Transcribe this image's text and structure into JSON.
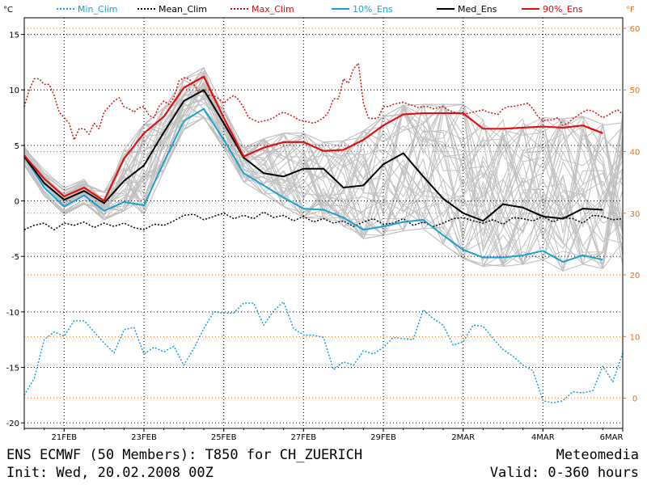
{
  "footer": {
    "line1": "ENS ECMWF (50 Members): T850 for CH_ZUERICH",
    "line2": "Init: Wed, 20.02.2008 00Z",
    "brand": "Meteomedia",
    "valid": "Valid: 0-360 hours"
  },
  "colors": {
    "min_clim": "#1a9fd0",
    "mean_clim": "#000000",
    "max_clim": "#d01010",
    "ens10": "#1a9fd0",
    "med": "#000000",
    "ens90": "#e01010",
    "members": "#c0c0c0",
    "fgrid": "#e07020"
  },
  "chart_data": {
    "type": "line",
    "ylabel_left": "°C",
    "ylabel_right": "°F",
    "xlim": [
      0,
      360
    ],
    "ylim": [
      -20.5,
      16.5
    ],
    "x_ticks": [
      {
        "x": 24,
        "label": "21FEB"
      },
      {
        "x": 72,
        "label": "23FEB"
      },
      {
        "x": 120,
        "label": "25FEB"
      },
      {
        "x": 168,
        "label": "27FEB"
      },
      {
        "x": 216,
        "label": "29FEB"
      },
      {
        "x": 264,
        "label": "2MAR"
      },
      {
        "x": 312,
        "label": "4MAR"
      },
      {
        "x": 360,
        "label": "6MAR"
      }
    ],
    "y_ticks_c": [
      {
        "v": 15,
        "label": "15"
      },
      {
        "v": 10,
        "label": "10"
      },
      {
        "v": 5,
        "label": "5"
      },
      {
        "v": 0,
        "label": "0"
      },
      {
        "v": -5,
        "label": "-5"
      },
      {
        "v": -10,
        "label": "-10"
      },
      {
        "v": -15,
        "label": "-15"
      },
      {
        "v": -20,
        "label": "-20"
      }
    ],
    "y_ticks_f": [
      {
        "v": 60,
        "label": "60"
      },
      {
        "v": 50,
        "label": "50"
      },
      {
        "v": 40,
        "label": "40"
      },
      {
        "v": 30,
        "label": "30"
      },
      {
        "v": 20,
        "label": "20"
      },
      {
        "v": 10,
        "label": "10"
      },
      {
        "v": 0,
        "label": "0"
      }
    ],
    "legend": [
      {
        "name": "Min_Clim",
        "key": "min_clim",
        "dash": true
      },
      {
        "name": "Mean_Clim",
        "key": "mean_clim",
        "dash": true
      },
      {
        "name": "Max_Clim",
        "key": "max_clim",
        "dash": true
      },
      {
        "name": "10%_Ens",
        "key": "ens10",
        "dash": false
      },
      {
        "name": "Med_Ens",
        "key": "med",
        "dash": false
      },
      {
        "name": "90%_Ens",
        "key": "ens90",
        "dash": false
      }
    ],
    "series": [
      {
        "name": "Max_Clim",
        "key": "max_clim",
        "dash": true,
        "width": 1.5,
        "x": [
          0,
          3,
          6,
          9,
          12,
          15,
          18,
          21,
          24,
          27,
          30,
          33,
          36,
          39,
          42,
          45,
          48,
          51,
          54,
          57,
          60,
          63,
          66,
          69,
          72,
          75,
          78,
          81,
          84,
          87,
          90,
          93,
          96,
          99,
          102,
          105,
          108,
          111,
          114,
          117,
          120,
          123,
          126,
          129,
          132,
          135,
          138,
          141,
          144,
          147,
          150,
          153,
          156,
          159,
          162,
          165,
          168,
          171,
          174,
          177,
          180,
          183,
          186,
          189,
          192,
          195,
          198,
          201,
          204,
          207,
          210,
          213,
          216,
          219,
          222,
          225,
          228,
          231,
          234,
          237,
          240,
          243,
          246,
          249,
          252,
          255,
          258,
          261,
          264,
          267,
          270,
          273,
          276,
          279,
          282,
          285,
          288,
          291,
          294,
          297,
          300,
          303,
          306,
          309,
          312,
          315,
          318,
          321,
          324,
          327,
          330,
          333,
          336,
          339,
          342,
          345,
          348,
          351,
          354,
          357,
          360
        ],
        "y": [
          8.5,
          10,
          11,
          11,
          10.5,
          10.5,
          9.5,
          8,
          7.5,
          7,
          5.5,
          6.5,
          6.5,
          6,
          7,
          6.5,
          8,
          8.5,
          9,
          9.3,
          8.5,
          8.3,
          8,
          8.4,
          8.5,
          7.7,
          7.5,
          8.5,
          9,
          8.7,
          9.3,
          10.8,
          11.1,
          11,
          10.5,
          9.8,
          9.8,
          9.5,
          9.5,
          9.2,
          8.8,
          9.2,
          9.5,
          9.1,
          8.4,
          7.5,
          7.3,
          7.1,
          7.2,
          7.3,
          7.5,
          7.8,
          8,
          7.8,
          7.6,
          7.3,
          7.2,
          7.1,
          7.0,
          7.2,
          7.5,
          8.0,
          9.2,
          9.2,
          11.0,
          10.6,
          11.9,
          12.4,
          8.8,
          7.5,
          7.4,
          7.5,
          8.5,
          8.5,
          8.7,
          8.8,
          8.9,
          8.7,
          8.6,
          8.4,
          8.5,
          8.5,
          8.3,
          8.4,
          8.5,
          8.2,
          8.0,
          7.9,
          7.8,
          7.9,
          8.0,
          8.1,
          8.2,
          8.0,
          7.9,
          7.8,
          8.3,
          8.5,
          8.5,
          8.6,
          8.7,
          8.8,
          8.3,
          7.6,
          7.2,
          7.3,
          7.3,
          7.5,
          6.8,
          7.0,
          7.4,
          7.7,
          8.0,
          8.2,
          8.1,
          7.8,
          7.5,
          7.7,
          8.0,
          8.2,
          7.8
        ]
      },
      {
        "name": "Mean_Clim",
        "key": "mean_clim",
        "dash": true,
        "width": 1.5,
        "x": [
          0,
          6,
          12,
          18,
          24,
          30,
          36,
          42,
          48,
          54,
          60,
          66,
          72,
          78,
          84,
          90,
          96,
          102,
          108,
          114,
          120,
          126,
          132,
          138,
          144,
          150,
          156,
          162,
          168,
          174,
          180,
          186,
          192,
          198,
          204,
          210,
          216,
          222,
          228,
          234,
          240,
          246,
          252,
          258,
          264,
          270,
          276,
          282,
          288,
          294,
          300,
          306,
          312,
          318,
          324,
          330,
          336,
          342,
          348,
          354,
          360
        ],
        "y": [
          -2.6,
          -2.2,
          -2.0,
          -2.6,
          -2.0,
          -2.2,
          -1.9,
          -2.4,
          -2.0,
          -2.3,
          -2.0,
          -2.4,
          -2.6,
          -2.1,
          -2.2,
          -1.8,
          -1.3,
          -1.2,
          -1.7,
          -1.4,
          -1.1,
          -1.6,
          -1.3,
          -1.6,
          -1.0,
          -1.5,
          -1.3,
          -1.8,
          -1.4,
          -1.9,
          -1.6,
          -2.0,
          -1.8,
          -2.3,
          -1.9,
          -1.6,
          -2.1,
          -2.0,
          -1.6,
          -2.2,
          -1.9,
          -2.3,
          -2.0,
          -1.6,
          -1.5,
          -1.8,
          -2.0,
          -1.7,
          -2.1,
          -1.5,
          -1.6,
          -1.8,
          -1.4,
          -1.9,
          -1.5,
          -1.6,
          -2.0,
          -1.3,
          -1.4,
          -1.7,
          -1.6
        ]
      },
      {
        "name": "Min_Clim",
        "key": "min_clim",
        "dash": true,
        "width": 1.5,
        "x": [
          0,
          6,
          12,
          18,
          24,
          30,
          36,
          42,
          48,
          54,
          60,
          66,
          72,
          78,
          84,
          90,
          96,
          102,
          108,
          114,
          120,
          126,
          132,
          138,
          144,
          150,
          156,
          162,
          168,
          174,
          180,
          186,
          192,
          198,
          204,
          210,
          216,
          222,
          228,
          234,
          240,
          246,
          252,
          258,
          264,
          270,
          276,
          282,
          288,
          294,
          300,
          306,
          312,
          318,
          324,
          330,
          336,
          342,
          348,
          354,
          360
        ],
        "y": [
          -17.5,
          -16,
          -12.5,
          -11.8,
          -12.2,
          -10.8,
          -10.8,
          -11.8,
          -12.8,
          -13.7,
          -11.6,
          -11.4,
          -13.8,
          -13.2,
          -13.6,
          -13.1,
          -14.8,
          -13.3,
          -11.5,
          -10.0,
          -10.1,
          -10.1,
          -9.2,
          -9.2,
          -11.2,
          -9.9,
          -9.1,
          -11.5,
          -12.1,
          -12.1,
          -12.3,
          -15.2,
          -14.5,
          -14.8,
          -13.5,
          -13.8,
          -13.2,
          -12.3,
          -12.4,
          -12.5,
          -9.8,
          -10.6,
          -11.2,
          -13.0,
          -12.7,
          -11.2,
          -11.3,
          -12.4,
          -13.4,
          -14.0,
          -14.8,
          -15.3,
          -18.0,
          -18.2,
          -18.0,
          -17.2,
          -17.3,
          -17.1,
          -14.9,
          -16.3,
          -13.7
        ]
      },
      {
        "name": "10%_Ens",
        "key": "ens10",
        "dash": false,
        "width": 2,
        "x": [
          0,
          12,
          24,
          36,
          48,
          60,
          72,
          84,
          96,
          108,
          120,
          132,
          144,
          156,
          168,
          180,
          192,
          204,
          216,
          228,
          240,
          252,
          264,
          276,
          288,
          300,
          312,
          324,
          336,
          348
        ],
        "y": [
          4,
          1.2,
          -0.5,
          0.5,
          -0.9,
          -0.1,
          -0.4,
          3.5,
          7.2,
          8.3,
          5.5,
          2.5,
          1.4,
          0.3,
          -0.7,
          -0.8,
          -1.5,
          -2.6,
          -2.3,
          -1.9,
          -1.7,
          -3.1,
          -4.4,
          -5.1,
          -5.1,
          -4.9,
          -4.5,
          -5.5,
          -4.9,
          -5.3
        ]
      },
      {
        "name": "Med_Ens",
        "key": "med",
        "dash": false,
        "width": 2,
        "x": [
          0,
          12,
          24,
          36,
          48,
          60,
          72,
          84,
          96,
          108,
          120,
          132,
          144,
          156,
          168,
          180,
          192,
          204,
          216,
          228,
          240,
          252,
          264,
          276,
          288,
          300,
          312,
          324,
          336,
          348
        ],
        "y": [
          4,
          1.6,
          0.1,
          0.9,
          -0.2,
          1.8,
          3.2,
          6.2,
          9,
          10,
          7,
          3.9,
          2.5,
          2.2,
          2.9,
          2.9,
          1.2,
          1.4,
          3.3,
          4.3,
          2.2,
          0.2,
          -1.1,
          -1.8,
          -0.3,
          -0.6,
          -1.4,
          -1.6,
          -0.7,
          -0.8
        ]
      },
      {
        "name": "90%_Ens",
        "key": "ens90",
        "dash": false,
        "width": 2.2,
        "x": [
          0,
          12,
          24,
          36,
          48,
          60,
          72,
          84,
          96,
          108,
          120,
          132,
          144,
          156,
          168,
          180,
          192,
          204,
          216,
          228,
          240,
          252,
          264,
          276,
          288,
          300,
          312,
          324,
          336,
          348
        ],
        "y": [
          4.1,
          2,
          0.4,
          1.2,
          0,
          3.8,
          6.1,
          7.6,
          10.2,
          11.2,
          7.5,
          4,
          4.8,
          5.3,
          5.3,
          4.5,
          4.6,
          5.5,
          6.8,
          7.8,
          7.9,
          7.9,
          7.9,
          6.5,
          6.5,
          6.6,
          6.7,
          6.6,
          6.8,
          6.1
        ]
      }
    ]
  }
}
